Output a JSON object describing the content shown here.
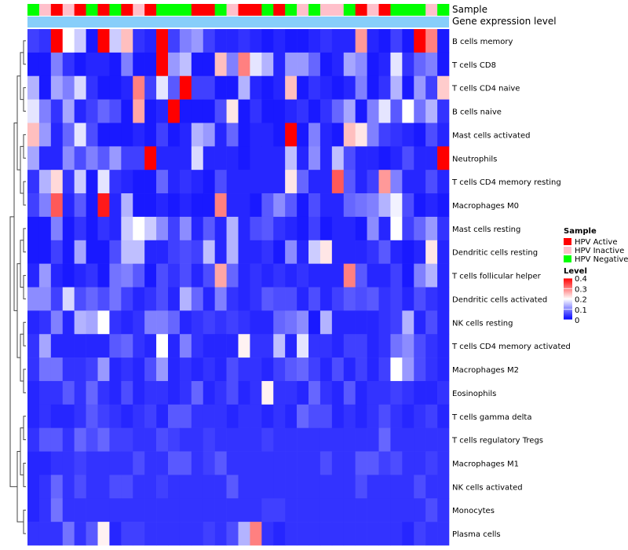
{
  "chart_data": {
    "type": "heatmap",
    "title": "",
    "annotation_tracks": [
      "Sample",
      "Gene expression level"
    ],
    "rows": [
      "B cells memory",
      "T cells CD8",
      "T cells CD4 naive",
      "B cells naive",
      "Mast cells activated",
      "Neutrophils",
      "T cells CD4 memory resting",
      "Macrophages M0",
      "Mast cells resting",
      "Dendritic cells resting",
      "T cells follicular helper",
      "Dendritic cells activated",
      "NK cells resting",
      "T cells CD4 memory activated",
      "Macrophages M2",
      "Eosinophils",
      "T cells gamma delta",
      "T cells regulatory  Tregs",
      "Macrophages M1",
      "NK cells activated",
      "Monocytes",
      "Plasma cells"
    ],
    "n_columns": 36,
    "sample_groups": [
      "HPV Negative",
      "HPV Inactive",
      "HPV Active",
      "HPV Inactive",
      "HPV Active",
      "HPV Negative",
      "HPV Active",
      "HPV Negative",
      "HPV Active",
      "HPV Inactive",
      "HPV Active",
      "HPV Negative",
      "HPV Negative",
      "HPV Negative",
      "HPV Active",
      "HPV Active",
      "HPV Negative",
      "HPV Inactive",
      "HPV Active",
      "HPV Active",
      "HPV Negative",
      "HPV Active",
      "HPV Negative",
      "HPV Inactive",
      "HPV Negative",
      "HPV Inactive",
      "HPV Inactive",
      "HPV Negative",
      "HPV Active",
      "HPV Inactive",
      "HPV Active",
      "HPV Negative",
      "HPV Negative",
      "HPV Negative",
      "HPV Inactive",
      "HPV Negative"
    ],
    "legend": {
      "sample_title": "Sample",
      "sample_entries": [
        {
          "label": "HPV Active",
          "color": "#ff0000"
        },
        {
          "label": "HPV Inactive",
          "color": "#ffc0cb"
        },
        {
          "label": "HPV Negative",
          "color": "#00ff00"
        }
      ],
      "level_title": "Level",
      "level_ticks": [
        "0.4",
        "0.3",
        "0.2",
        "0.1",
        "0"
      ],
      "level_range": [
        0,
        0.4
      ],
      "colors": {
        "low": "#0000ff",
        "mid": "#ffffff",
        "high": "#ff0000"
      }
    },
    "gene_expression_color": "#87cefa",
    "values": [
      [
        0.05,
        0.04,
        0.4,
        0.2,
        0.16,
        0.02,
        0.4,
        0.16,
        0.25,
        0.04,
        0.03,
        0.4,
        0.05,
        0.1,
        0.12,
        0.05,
        0.03,
        0.03,
        0.04,
        0.03,
        0.02,
        0.03,
        0.02,
        0.02,
        0.03,
        0.04,
        0.03,
        0.03,
        0.28,
        0.03,
        0.02,
        0.05,
        0.02,
        0.4,
        0.3,
        0.02
      ],
      [
        0.02,
        0.02,
        0.1,
        0.04,
        0.02,
        0.03,
        0.03,
        0.02,
        0.1,
        0.02,
        0.02,
        0.4,
        0.12,
        0.15,
        0.02,
        0.02,
        0.25,
        0.1,
        0.3,
        0.18,
        0.14,
        0.03,
        0.12,
        0.12,
        0.08,
        0.02,
        0.03,
        0.13,
        0.11,
        0.02,
        0.03,
        0.18,
        0.04,
        0.08,
        0.1,
        0.02
      ],
      [
        0.14,
        0.02,
        0.13,
        0.1,
        0.17,
        0.04,
        0.02,
        0.02,
        0.03,
        0.3,
        0.05,
        0.18,
        0.07,
        0.4,
        0.05,
        0.05,
        0.02,
        0.02,
        0.14,
        0.03,
        0.02,
        0.03,
        0.25,
        0.02,
        0.04,
        0.03,
        0.02,
        0.03,
        0.1,
        0.02,
        0.04,
        0.14,
        0.02,
        0.12,
        0.05,
        0.24
      ],
      [
        0.18,
        0.1,
        0.04,
        0.13,
        0.03,
        0.05,
        0.08,
        0.06,
        0.02,
        0.27,
        0.02,
        0.03,
        0.4,
        0.02,
        0.02,
        0.02,
        0.06,
        0.22,
        0.02,
        0.04,
        0.02,
        0.02,
        0.03,
        0.04,
        0.02,
        0.04,
        0.08,
        0.13,
        0.02,
        0.1,
        0.18,
        0.07,
        0.2,
        0.09,
        0.14,
        0.04
      ],
      [
        0.25,
        0.12,
        0.03,
        0.08,
        0.18,
        0.06,
        0.02,
        0.02,
        0.02,
        0.03,
        0.02,
        0.05,
        0.02,
        0.03,
        0.14,
        0.12,
        0.03,
        0.08,
        0.02,
        0.03,
        0.03,
        0.02,
        0.4,
        0.02,
        0.1,
        0.03,
        0.02,
        0.25,
        0.22,
        0.1,
        0.05,
        0.04,
        0.03,
        0.02,
        0.06,
        0.03
      ],
      [
        0.13,
        0.03,
        0.03,
        0.11,
        0.06,
        0.1,
        0.07,
        0.12,
        0.05,
        0.05,
        0.4,
        0.03,
        0.03,
        0.03,
        0.17,
        0.03,
        0.03,
        0.03,
        0.02,
        0.03,
        0.03,
        0.03,
        0.15,
        0.03,
        0.11,
        0.03,
        0.15,
        0.06,
        0.03,
        0.03,
        0.02,
        0.03,
        0.06,
        0.03,
        0.03,
        0.4
      ],
      [
        0.04,
        0.14,
        0.23,
        0.04,
        0.16,
        0.02,
        0.18,
        0.04,
        0.03,
        0.02,
        0.02,
        0.08,
        0.03,
        0.04,
        0.03,
        0.02,
        0.06,
        0.03,
        0.03,
        0.03,
        0.03,
        0.03,
        0.22,
        0.08,
        0.03,
        0.03,
        0.33,
        0.07,
        0.03,
        0.05,
        0.28,
        0.1,
        0.03,
        0.03,
        0.06,
        0.03
      ],
      [
        0.05,
        0.1,
        0.33,
        0.03,
        0.07,
        0.02,
        0.38,
        0.03,
        0.14,
        0.02,
        0.02,
        0.03,
        0.02,
        0.03,
        0.02,
        0.02,
        0.3,
        0.03,
        0.03,
        0.02,
        0.07,
        0.11,
        0.07,
        0.02,
        0.06,
        0.03,
        0.03,
        0.08,
        0.09,
        0.1,
        0.14,
        0.19,
        0.06,
        0.02,
        0.03,
        0.02
      ],
      [
        0.02,
        0.02,
        0.1,
        0.02,
        0.04,
        0.02,
        0.04,
        0.03,
        0.16,
        0.2,
        0.16,
        0.11,
        0.05,
        0.11,
        0.03,
        0.07,
        0.03,
        0.14,
        0.03,
        0.06,
        0.07,
        0.04,
        0.03,
        0.02,
        0.05,
        0.02,
        0.03,
        0.03,
        0.02,
        0.11,
        0.03,
        0.2,
        0.05,
        0.08,
        0.12,
        0.04
      ],
      [
        0.02,
        0.02,
        0.05,
        0.02,
        0.13,
        0.02,
        0.02,
        0.06,
        0.15,
        0.15,
        0.03,
        0.03,
        0.05,
        0.06,
        0.05,
        0.15,
        0.03,
        0.14,
        0.03,
        0.03,
        0.04,
        0.02,
        0.11,
        0.03,
        0.16,
        0.22,
        0.03,
        0.03,
        0.03,
        0.04,
        0.07,
        0.03,
        0.02,
        0.03,
        0.22,
        0.03
      ],
      [
        0.03,
        0.12,
        0.03,
        0.02,
        0.03,
        0.04,
        0.02,
        0.09,
        0.1,
        0.07,
        0.02,
        0.06,
        0.04,
        0.06,
        0.03,
        0.06,
        0.27,
        0.08,
        0.03,
        0.04,
        0.03,
        0.04,
        0.03,
        0.04,
        0.03,
        0.03,
        0.03,
        0.3,
        0.07,
        0.03,
        0.03,
        0.05,
        0.02,
        0.1,
        0.14,
        0.03
      ],
      [
        0.11,
        0.11,
        0.05,
        0.17,
        0.06,
        0.08,
        0.06,
        0.09,
        0.05,
        0.03,
        0.04,
        0.06,
        0.03,
        0.14,
        0.08,
        0.03,
        0.1,
        0.04,
        0.03,
        0.04,
        0.07,
        0.06,
        0.06,
        0.03,
        0.06,
        0.03,
        0.05,
        0.07,
        0.06,
        0.07,
        0.04,
        0.05,
        0.03,
        0.06,
        0.04,
        0.03
      ],
      [
        0.03,
        0.04,
        0.1,
        0.03,
        0.14,
        0.13,
        0.2,
        0.04,
        0.03,
        0.04,
        0.1,
        0.1,
        0.08,
        0.03,
        0.04,
        0.05,
        0.04,
        0.05,
        0.04,
        0.03,
        0.03,
        0.08,
        0.09,
        0.11,
        0.02,
        0.14,
        0.03,
        0.03,
        0.03,
        0.03,
        0.04,
        0.05,
        0.14,
        0.03,
        0.06,
        0.03
      ],
      [
        0.04,
        0.13,
        0.03,
        0.03,
        0.03,
        0.03,
        0.03,
        0.07,
        0.08,
        0.04,
        0.03,
        0.2,
        0.03,
        0.1,
        0.04,
        0.03,
        0.03,
        0.03,
        0.21,
        0.04,
        0.04,
        0.15,
        0.03,
        0.18,
        0.04,
        0.04,
        0.03,
        0.05,
        0.05,
        0.03,
        0.04,
        0.09,
        0.11,
        0.06,
        0.04,
        0.03
      ],
      [
        0.04,
        0.09,
        0.09,
        0.04,
        0.04,
        0.05,
        0.12,
        0.03,
        0.04,
        0.03,
        0.06,
        0.12,
        0.03,
        0.04,
        0.03,
        0.04,
        0.03,
        0.06,
        0.04,
        0.04,
        0.03,
        0.05,
        0.07,
        0.08,
        0.05,
        0.03,
        0.06,
        0.03,
        0.05,
        0.03,
        0.05,
        0.2,
        0.12,
        0.06,
        0.04,
        0.03
      ],
      [
        0.03,
        0.04,
        0.04,
        0.07,
        0.04,
        0.08,
        0.04,
        0.03,
        0.06,
        0.03,
        0.04,
        0.04,
        0.03,
        0.04,
        0.08,
        0.03,
        0.04,
        0.06,
        0.03,
        0.04,
        0.21,
        0.04,
        0.04,
        0.03,
        0.08,
        0.04,
        0.03,
        0.07,
        0.03,
        0.04,
        0.04,
        0.05,
        0.04,
        0.03,
        0.03,
        0.04
      ],
      [
        0.03,
        0.04,
        0.03,
        0.03,
        0.04,
        0.07,
        0.05,
        0.04,
        0.03,
        0.04,
        0.05,
        0.03,
        0.07,
        0.07,
        0.04,
        0.04,
        0.04,
        0.03,
        0.04,
        0.04,
        0.03,
        0.04,
        0.03,
        0.08,
        0.06,
        0.06,
        0.03,
        0.04,
        0.03,
        0.04,
        0.06,
        0.04,
        0.03,
        0.04,
        0.05,
        0.03
      ],
      [
        0.04,
        0.07,
        0.07,
        0.04,
        0.08,
        0.06,
        0.08,
        0.05,
        0.05,
        0.04,
        0.04,
        0.06,
        0.05,
        0.04,
        0.04,
        0.05,
        0.04,
        0.04,
        0.04,
        0.04,
        0.05,
        0.04,
        0.04,
        0.04,
        0.04,
        0.04,
        0.04,
        0.04,
        0.04,
        0.04,
        0.08,
        0.04,
        0.04,
        0.04,
        0.04,
        0.04
      ],
      [
        0.03,
        0.03,
        0.04,
        0.04,
        0.05,
        0.04,
        0.04,
        0.04,
        0.04,
        0.06,
        0.04,
        0.04,
        0.07,
        0.07,
        0.04,
        0.05,
        0.07,
        0.04,
        0.04,
        0.04,
        0.04,
        0.04,
        0.04,
        0.04,
        0.04,
        0.06,
        0.04,
        0.04,
        0.07,
        0.07,
        0.05,
        0.06,
        0.04,
        0.04,
        0.05,
        0.04
      ],
      [
        0.03,
        0.04,
        0.08,
        0.04,
        0.06,
        0.04,
        0.04,
        0.06,
        0.06,
        0.04,
        0.04,
        0.05,
        0.04,
        0.04,
        0.04,
        0.04,
        0.04,
        0.07,
        0.04,
        0.04,
        0.04,
        0.04,
        0.04,
        0.04,
        0.04,
        0.04,
        0.04,
        0.04,
        0.06,
        0.04,
        0.04,
        0.04,
        0.04,
        0.06,
        0.04,
        0.04
      ],
      [
        0.03,
        0.04,
        0.09,
        0.04,
        0.04,
        0.04,
        0.04,
        0.04,
        0.04,
        0.04,
        0.04,
        0.04,
        0.04,
        0.04,
        0.04,
        0.04,
        0.04,
        0.04,
        0.04,
        0.04,
        0.05,
        0.05,
        0.04,
        0.04,
        0.04,
        0.04,
        0.04,
        0.04,
        0.04,
        0.04,
        0.04,
        0.04,
        0.04,
        0.04,
        0.06,
        0.04
      ],
      [
        0.04,
        0.04,
        0.04,
        0.09,
        0.04,
        0.07,
        0.21,
        0.03,
        0.05,
        0.05,
        0.04,
        0.04,
        0.04,
        0.04,
        0.04,
        0.05,
        0.04,
        0.06,
        0.14,
        0.3,
        0.04,
        0.03,
        0.04,
        0.04,
        0.04,
        0.04,
        0.04,
        0.04,
        0.04,
        0.04,
        0.04,
        0.04,
        0.03,
        0.05,
        0.04,
        0.04
      ]
    ]
  }
}
